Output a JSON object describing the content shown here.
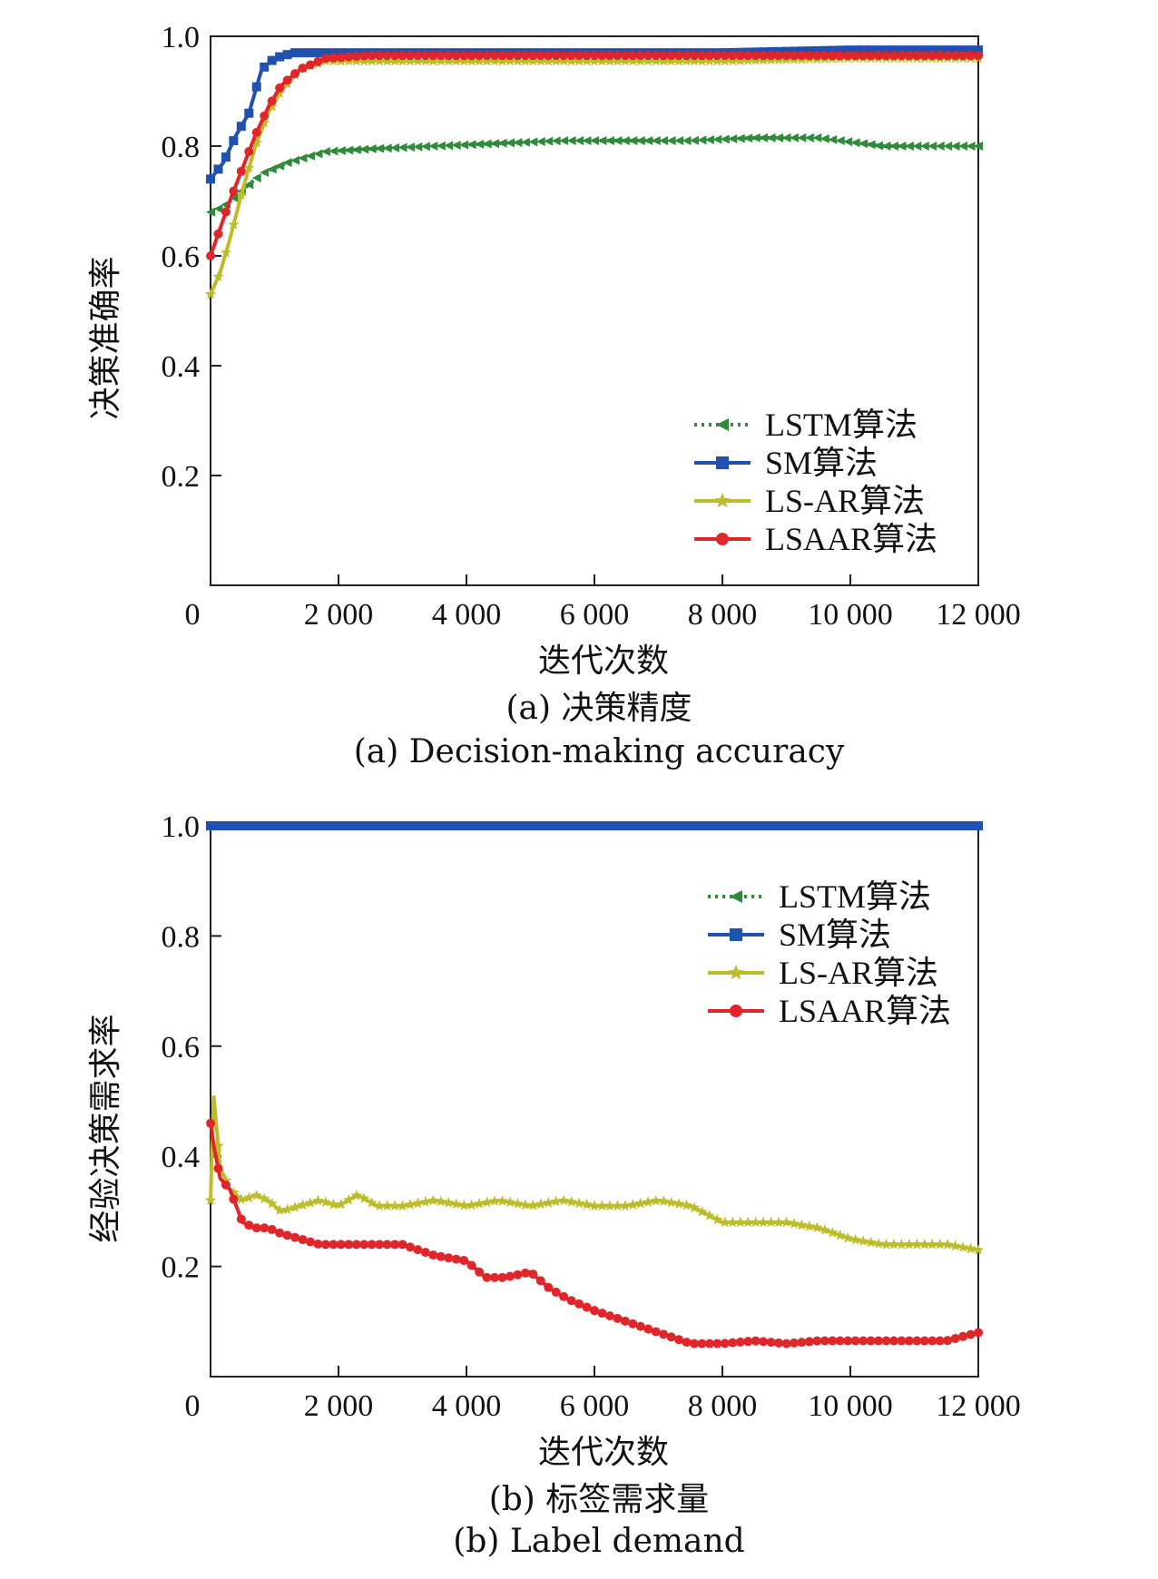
{
  "chart_data": [
    {
      "id": "a",
      "type": "line",
      "xlabel": "迭代次数",
      "ylabel": "决策准确率",
      "caption_cn": "(a) 决策精度",
      "caption_en": "(a) Decision-making accuracy",
      "xlim": [
        0,
        12000
      ],
      "ylim": [
        0,
        1.0
      ],
      "x_ticks": [
        0,
        2000,
        4000,
        6000,
        8000,
        10000,
        12000
      ],
      "x_tick_labels": [
        "0",
        "2 000",
        "4 000",
        "6 000",
        "8 000",
        "10 000",
        "12 000"
      ],
      "y_ticks": [
        0.2,
        0.4,
        0.6,
        0.8,
        1.0
      ],
      "y_tick_labels": [
        "0.2",
        "0.4",
        "0.6",
        "0.8",
        "1.0"
      ],
      "grid": false,
      "legend_position": "bottom-right",
      "series": [
        {
          "name": "LSTM算法",
          "color": "#2e8b3a",
          "dash": "dotted",
          "marker": "triangle-left",
          "x": [
            0,
            200,
            500,
            800,
            1200,
            1800,
            2500,
            3500,
            4500,
            5500,
            6500,
            7500,
            8500,
            9500,
            10500,
            11000,
            12000
          ],
          "y": [
            0.68,
            0.69,
            0.72,
            0.75,
            0.77,
            0.79,
            0.795,
            0.8,
            0.805,
            0.81,
            0.81,
            0.81,
            0.815,
            0.815,
            0.8,
            0.8,
            0.8
          ]
        },
        {
          "name": "SM算法",
          "color": "#2050b0",
          "dash": "solid",
          "marker": "square",
          "x": [
            0,
            200,
            400,
            600,
            800,
            1000,
            1300,
            1600,
            2000,
            3000,
            4000,
            6000,
            8000,
            10000,
            12000
          ],
          "y": [
            0.74,
            0.77,
            0.82,
            0.86,
            0.94,
            0.96,
            0.97,
            0.97,
            0.97,
            0.97,
            0.97,
            0.97,
            0.97,
            0.975,
            0.975
          ]
        },
        {
          "name": "LS-AR算法",
          "color": "#bdbd2a",
          "dash": "solid",
          "marker": "star",
          "x": [
            0,
            150,
            300,
            500,
            700,
            900,
            1100,
            1400,
            1800,
            2500,
            4000,
            6000,
            8000,
            10000,
            12000
          ],
          "y": [
            0.53,
            0.57,
            0.63,
            0.72,
            0.8,
            0.86,
            0.9,
            0.94,
            0.955,
            0.955,
            0.955,
            0.955,
            0.955,
            0.96,
            0.96
          ]
        },
        {
          "name": "LSAAR算法",
          "color": "#e0262a",
          "dash": "solid",
          "marker": "circle",
          "x": [
            0,
            150,
            300,
            500,
            700,
            900,
            1100,
            1400,
            1800,
            2500,
            4000,
            6000,
            8000,
            10000,
            12000
          ],
          "y": [
            0.6,
            0.65,
            0.7,
            0.76,
            0.82,
            0.87,
            0.91,
            0.94,
            0.96,
            0.965,
            0.965,
            0.965,
            0.965,
            0.965,
            0.965
          ]
        }
      ]
    },
    {
      "id": "b",
      "type": "line",
      "xlabel": "迭代次数",
      "ylabel": "经验决策需求率",
      "caption_cn": "(b) 标签需求量",
      "caption_en": "(b) Label demand",
      "xlim": [
        0,
        12000
      ],
      "ylim": [
        0,
        1.0
      ],
      "x_ticks": [
        0,
        2000,
        4000,
        6000,
        8000,
        10000,
        12000
      ],
      "x_tick_labels": [
        "0",
        "2 000",
        "4 000",
        "6 000",
        "8 000",
        "10 000",
        "12 000"
      ],
      "y_ticks": [
        0.2,
        0.4,
        0.6,
        0.8,
        1.0
      ],
      "y_tick_labels": [
        "0.2",
        "0.4",
        "0.6",
        "0.8",
        "1.0"
      ],
      "grid": false,
      "legend_position": "top-right",
      "series": [
        {
          "name": "LSTM算法",
          "color": "#2e8b3a",
          "dash": "dotted",
          "marker": "triangle-left",
          "x": [
            0,
            2000,
            4000,
            6000,
            8000,
            10000,
            12000
          ],
          "y": [
            1.0,
            1.0,
            1.0,
            1.0,
            1.0,
            1.0,
            1.0
          ]
        },
        {
          "name": "SM算法",
          "color": "#2050b0",
          "dash": "solid",
          "marker": "square",
          "x": [
            0,
            2000,
            4000,
            6000,
            8000,
            10000,
            12000
          ],
          "y": [
            1.0,
            1.0,
            1.0,
            1.0,
            1.0,
            1.0,
            1.0
          ]
        },
        {
          "name": "LS-AR算法",
          "color": "#bdbd2a",
          "dash": "solid",
          "marker": "star",
          "x": [
            0,
            50,
            150,
            300,
            500,
            700,
            900,
            1100,
            1400,
            1700,
            2000,
            2300,
            2600,
            3000,
            3500,
            4000,
            4500,
            5000,
            5500,
            6000,
            6500,
            7000,
            7500,
            8000,
            8500,
            9000,
            9500,
            10000,
            10500,
            11000,
            11500,
            12000
          ],
          "y": [
            0.32,
            0.51,
            0.38,
            0.34,
            0.32,
            0.33,
            0.32,
            0.3,
            0.31,
            0.32,
            0.31,
            0.33,
            0.31,
            0.31,
            0.32,
            0.31,
            0.32,
            0.31,
            0.32,
            0.31,
            0.31,
            0.32,
            0.31,
            0.28,
            0.28,
            0.28,
            0.27,
            0.25,
            0.24,
            0.24,
            0.24,
            0.23
          ]
        },
        {
          "name": "LSAAR算法",
          "color": "#e0262a",
          "dash": "solid",
          "marker": "circle",
          "x": [
            0,
            50,
            150,
            300,
            500,
            700,
            900,
            1100,
            1400,
            1700,
            2000,
            2500,
            3000,
            3500,
            4000,
            4300,
            4600,
            5000,
            5300,
            5600,
            6000,
            6500,
            7000,
            7500,
            8000,
            8500,
            9000,
            9500,
            10000,
            10500,
            11000,
            11500,
            12000
          ],
          "y": [
            0.46,
            0.42,
            0.36,
            0.34,
            0.28,
            0.27,
            0.27,
            0.26,
            0.25,
            0.24,
            0.24,
            0.24,
            0.24,
            0.22,
            0.21,
            0.18,
            0.18,
            0.19,
            0.16,
            0.14,
            0.12,
            0.1,
            0.08,
            0.06,
            0.06,
            0.065,
            0.06,
            0.065,
            0.065,
            0.065,
            0.065,
            0.065,
            0.08
          ]
        }
      ]
    }
  ]
}
